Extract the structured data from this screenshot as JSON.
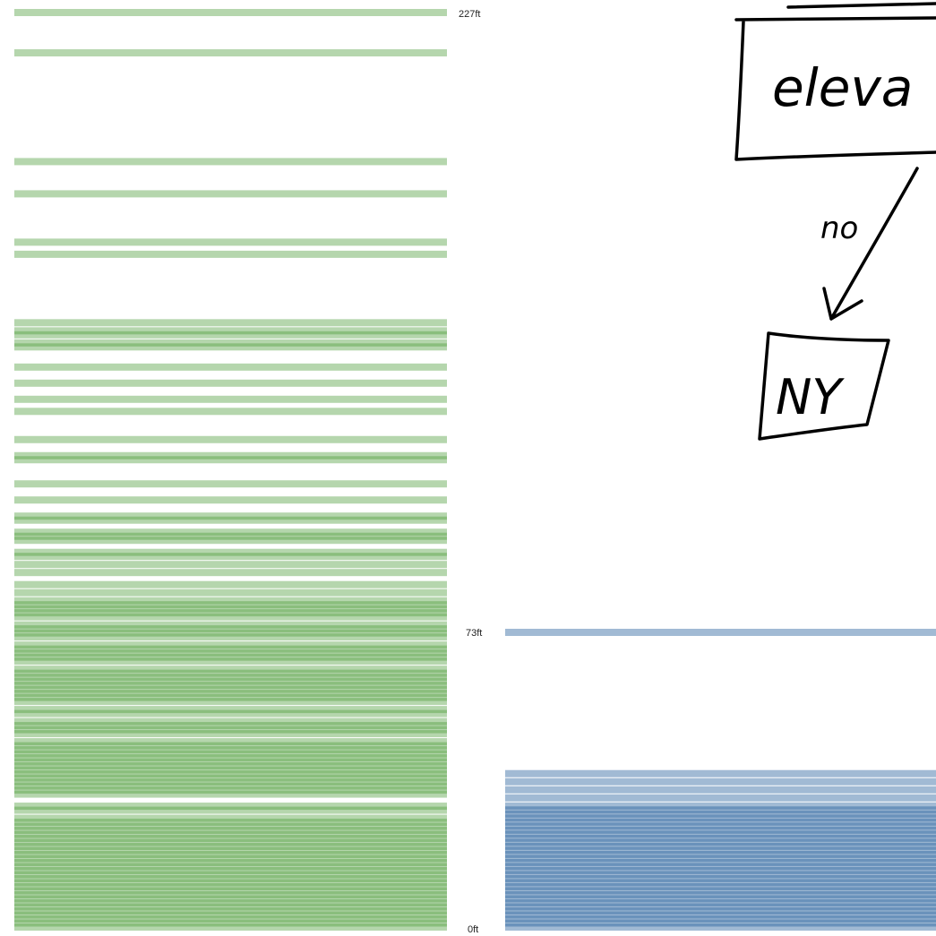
{
  "chart_data": {
    "type": "strip",
    "unit": "ft",
    "series": [
      {
        "color": "#4f9e3c",
        "max_value": 227,
        "tick_labels": [
          "227ft",
          "0ft"
        ],
        "values": [
          227,
          217,
          190,
          182,
          170,
          167,
          150,
          148,
          147,
          145,
          144,
          139,
          135,
          131,
          128,
          121,
          117,
          116,
          110,
          106,
          102,
          101,
          98,
          97,
          96,
          93,
          92,
          90,
          88,
          85,
          83,
          81,
          80,
          79,
          78,
          77,
          75,
          74,
          73,
          72,
          70,
          69,
          68,
          67,
          66,
          64,
          63,
          62,
          61,
          60,
          59,
          58,
          57,
          56,
          54,
          53,
          51,
          50,
          49,
          48,
          46,
          45,
          44,
          43,
          42,
          41,
          40,
          39,
          38,
          37,
          36,
          35,
          34,
          33,
          30,
          29,
          27,
          26,
          25,
          24,
          23,
          22,
          21,
          20,
          19,
          18,
          17,
          16,
          15,
          14,
          13,
          12,
          11,
          10,
          9,
          8,
          7,
          6,
          5,
          4,
          3,
          2,
          1,
          0
        ]
      },
      {
        "color": "#1f5a99",
        "max_value": 73,
        "tick_labels": [
          "73ft",
          "0ft"
        ],
        "values": [
          73,
          38,
          36,
          34,
          32,
          30,
          29,
          28,
          27,
          26,
          25,
          24,
          23,
          22,
          21,
          20,
          19,
          18,
          17,
          16,
          15,
          14,
          13,
          12,
          11,
          10,
          9,
          8,
          7,
          6,
          5,
          4,
          3,
          2,
          1,
          0
        ]
      }
    ]
  },
  "annotation": {
    "box_text": "eleva",
    "edge_label": "no",
    "leaf_text": "NY"
  }
}
